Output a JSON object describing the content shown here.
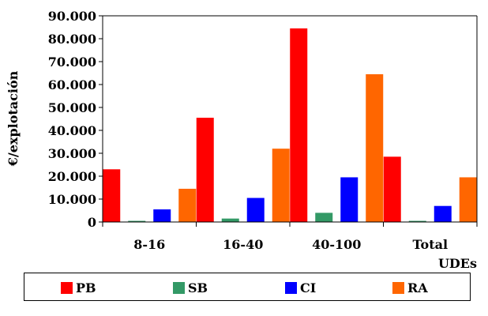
{
  "chart_data": {
    "type": "bar",
    "ylabel": "€/explotación",
    "xlabel": "UDEs",
    "ylim": [
      0,
      90000
    ],
    "ytick_step": 10000,
    "ytick_labels": [
      "0",
      "10.000",
      "20.000",
      "30.000",
      "40.000",
      "50.000",
      "60.000",
      "70.000",
      "80.000",
      "90.000"
    ],
    "categories": [
      "8-16",
      "16-40",
      "40-100",
      "Total"
    ],
    "legend_position": "bottom",
    "grid": false,
    "series": [
      {
        "name": "PB",
        "color": "#ff0000",
        "values": [
          23000,
          45500,
          84500,
          28500
        ]
      },
      {
        "name": "SB",
        "color": "#339966",
        "values": [
          500,
          1500,
          4000,
          500
        ]
      },
      {
        "name": "CI",
        "color": "#0000ff",
        "values": [
          5500,
          10500,
          19500,
          7000
        ]
      },
      {
        "name": "RA",
        "color": "#ff6600",
        "values": [
          14500,
          32000,
          64500,
          19500
        ]
      }
    ]
  }
}
